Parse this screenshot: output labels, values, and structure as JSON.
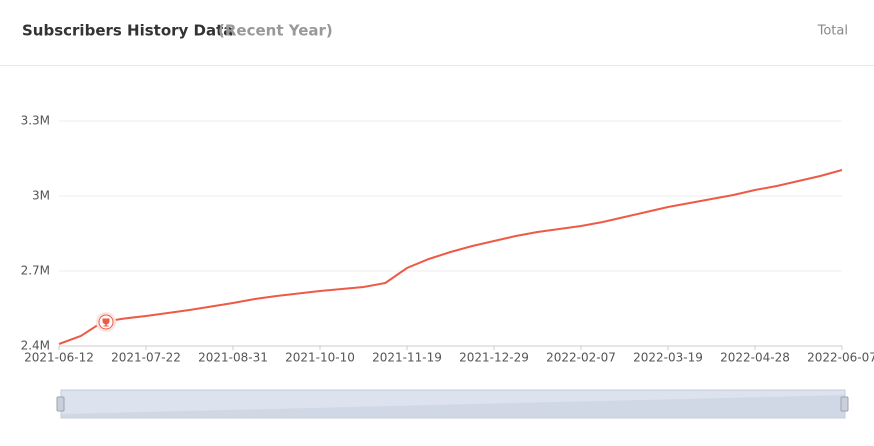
{
  "header": {
    "title": "Subscribers History Data",
    "subtitle": "(Recent Year)",
    "action": "Total"
  },
  "chart_data": {
    "type": "line",
    "x": [
      "2021-06-12",
      "2021-06-22",
      "2021-07-02",
      "2021-07-12",
      "2021-07-22",
      "2021-08-01",
      "2021-08-11",
      "2021-08-21",
      "2021-08-31",
      "2021-09-10",
      "2021-09-20",
      "2021-09-30",
      "2021-10-10",
      "2021-10-20",
      "2021-10-30",
      "2021-11-09",
      "2021-11-19",
      "2021-11-29",
      "2021-12-09",
      "2021-12-19",
      "2021-12-29",
      "2022-01-08",
      "2022-01-18",
      "2022-01-28",
      "2022-02-07",
      "2022-02-17",
      "2022-02-27",
      "2022-03-09",
      "2022-03-19",
      "2022-03-29",
      "2022-04-08",
      "2022-04-18",
      "2022-04-28",
      "2022-05-08",
      "2022-05-18",
      "2022-05-28",
      "2022-06-07"
    ],
    "series": [
      {
        "name": "Subscribers",
        "color": "#ee5a45",
        "values": [
          2408000,
          2440000,
          2496000,
          2510000,
          2520000,
          2532000,
          2544000,
          2558000,
          2572000,
          2588000,
          2600000,
          2610000,
          2620000,
          2628000,
          2636000,
          2652000,
          2712000,
          2748000,
          2776000,
          2800000,
          2820000,
          2840000,
          2856000,
          2868000,
          2880000,
          2896000,
          2916000,
          2936000,
          2956000,
          2972000,
          2988000,
          3004000,
          3024000,
          3040000,
          3060000,
          3080000,
          3104000
        ]
      }
    ],
    "xlim": [
      "2021-06-12",
      "2022-06-07"
    ],
    "xticks": [
      "2021-06-12",
      "2021-07-22",
      "2021-08-31",
      "2021-10-10",
      "2021-11-19",
      "2021-12-29",
      "2022-02-07",
      "2022-03-19",
      "2022-04-28",
      "2022-06-07"
    ],
    "ylim": [
      2400000,
      3300000
    ],
    "yticks": [
      {
        "value": 2400000,
        "label": "2.4M"
      },
      {
        "value": 2700000,
        "label": "2.7M"
      },
      {
        "value": 3000000,
        "label": "3M"
      },
      {
        "value": 3300000,
        "label": "3.3M"
      }
    ],
    "grid": true
  }
}
